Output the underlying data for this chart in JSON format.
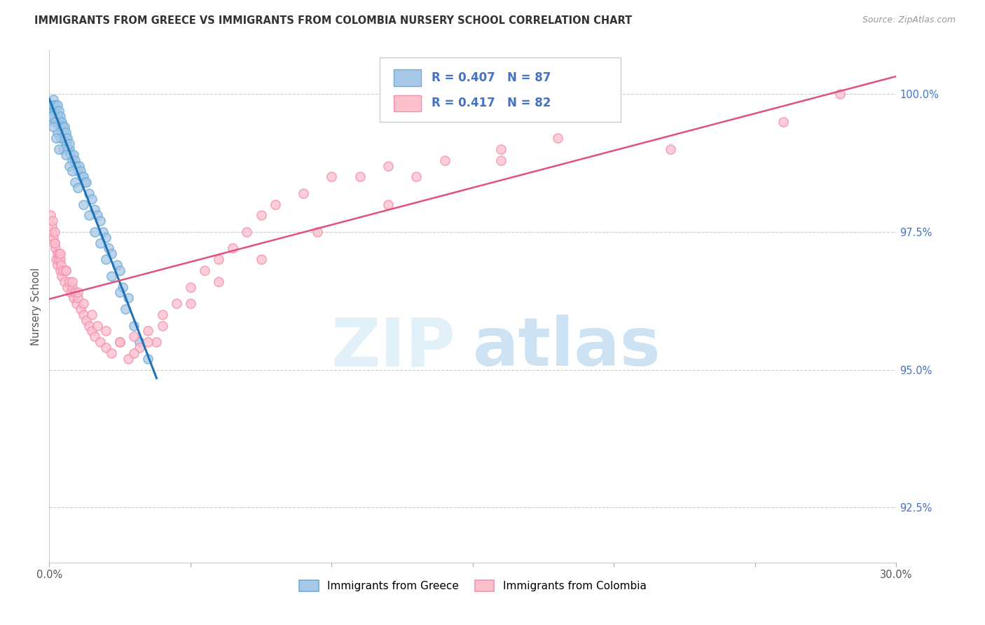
{
  "title": "IMMIGRANTS FROM GREECE VS IMMIGRANTS FROM COLOMBIA NURSERY SCHOOL CORRELATION CHART",
  "source": "Source: ZipAtlas.com",
  "ylabel": "Nursery School",
  "ytick_values": [
    92.5,
    95.0,
    97.5,
    100.0
  ],
  "xmin": 0.0,
  "xmax": 30.0,
  "ymin": 91.5,
  "ymax": 100.8,
  "greece_R": 0.407,
  "greece_N": 87,
  "colombia_R": 0.417,
  "colombia_N": 82,
  "greece_color": "#a8c8e8",
  "greece_edge_color": "#6baed6",
  "colombia_color": "#fcc0cb",
  "colombia_edge_color": "#f48fb1",
  "greece_line_color": "#2171b5",
  "colombia_line_color": "#e05080",
  "legend_text_color": "#4472c4",
  "watermark_zip_color": "#d0e4f5",
  "watermark_atlas_color": "#b8d0e8",
  "legend_label_greece": "Immigrants from Greece",
  "legend_label_colombia": "Immigrants from Colombia",
  "greece_x": [
    0.05,
    0.08,
    0.1,
    0.12,
    0.15,
    0.15,
    0.18,
    0.2,
    0.2,
    0.22,
    0.25,
    0.25,
    0.28,
    0.3,
    0.3,
    0.32,
    0.35,
    0.35,
    0.38,
    0.4,
    0.4,
    0.42,
    0.45,
    0.45,
    0.48,
    0.5,
    0.5,
    0.52,
    0.55,
    0.55,
    0.58,
    0.6,
    0.6,
    0.62,
    0.65,
    0.65,
    0.7,
    0.7,
    0.75,
    0.8,
    0.85,
    0.9,
    0.95,
    1.0,
    1.05,
    1.1,
    1.15,
    1.2,
    1.25,
    1.3,
    1.4,
    1.5,
    1.6,
    1.7,
    1.8,
    1.9,
    2.0,
    2.1,
    2.2,
    2.4,
    2.5,
    2.6,
    2.8,
    0.1,
    0.2,
    0.3,
    0.4,
    0.5,
    0.6,
    0.7,
    0.8,
    0.9,
    1.0,
    1.2,
    1.4,
    1.6,
    1.8,
    2.0,
    2.2,
    2.5,
    2.7,
    3.0,
    3.2,
    3.5,
    0.15,
    0.25,
    0.35
  ],
  "greece_y": [
    99.6,
    99.7,
    99.8,
    99.8,
    99.7,
    99.9,
    99.8,
    99.6,
    99.7,
    99.8,
    99.5,
    99.7,
    99.6,
    99.5,
    99.8,
    99.6,
    99.5,
    99.7,
    99.4,
    99.5,
    99.6,
    99.4,
    99.3,
    99.5,
    99.4,
    99.2,
    99.4,
    99.3,
    99.2,
    99.4,
    99.1,
    99.2,
    99.3,
    99.1,
    99.0,
    99.2,
    99.0,
    99.1,
    98.9,
    98.8,
    98.9,
    98.8,
    98.7,
    98.6,
    98.7,
    98.6,
    98.5,
    98.5,
    98.4,
    98.4,
    98.2,
    98.1,
    97.9,
    97.8,
    97.7,
    97.5,
    97.4,
    97.2,
    97.1,
    96.9,
    96.8,
    96.5,
    96.3,
    99.6,
    99.5,
    99.3,
    99.2,
    99.0,
    98.9,
    98.7,
    98.6,
    98.4,
    98.3,
    98.0,
    97.8,
    97.5,
    97.3,
    97.0,
    96.7,
    96.4,
    96.1,
    95.8,
    95.5,
    95.2,
    99.4,
    99.2,
    99.0
  ],
  "colombia_x": [
    0.05,
    0.08,
    0.1,
    0.12,
    0.15,
    0.18,
    0.2,
    0.22,
    0.25,
    0.28,
    0.3,
    0.32,
    0.35,
    0.38,
    0.4,
    0.42,
    0.45,
    0.5,
    0.55,
    0.6,
    0.65,
    0.7,
    0.75,
    0.8,
    0.85,
    0.9,
    0.95,
    1.0,
    1.1,
    1.2,
    1.3,
    1.4,
    1.5,
    1.6,
    1.7,
    1.8,
    2.0,
    2.2,
    2.5,
    2.8,
    3.0,
    3.2,
    3.5,
    3.8,
    4.0,
    4.5,
    5.0,
    5.5,
    6.0,
    6.5,
    7.0,
    7.5,
    8.0,
    9.0,
    10.0,
    11.0,
    12.0,
    13.0,
    14.0,
    16.0,
    18.0,
    22.0,
    26.0,
    0.2,
    0.4,
    0.6,
    0.8,
    1.0,
    1.2,
    1.5,
    2.0,
    2.5,
    3.0,
    3.5,
    4.0,
    5.0,
    6.0,
    7.5,
    9.5,
    12.0,
    16.0,
    28.0
  ],
  "colombia_y": [
    97.8,
    97.5,
    97.6,
    97.7,
    97.4,
    97.3,
    97.5,
    97.2,
    97.0,
    97.1,
    96.9,
    97.0,
    97.1,
    96.8,
    97.0,
    96.9,
    96.7,
    96.8,
    96.6,
    96.8,
    96.5,
    96.6,
    96.4,
    96.5,
    96.3,
    96.4,
    96.2,
    96.3,
    96.1,
    96.0,
    95.9,
    95.8,
    95.7,
    95.6,
    95.8,
    95.5,
    95.4,
    95.3,
    95.5,
    95.2,
    95.6,
    95.4,
    95.7,
    95.5,
    96.0,
    96.2,
    96.5,
    96.8,
    97.0,
    97.2,
    97.5,
    97.8,
    98.0,
    98.2,
    98.5,
    98.5,
    98.7,
    98.5,
    98.8,
    99.0,
    99.2,
    99.0,
    99.5,
    97.3,
    97.1,
    96.8,
    96.6,
    96.4,
    96.2,
    96.0,
    95.7,
    95.5,
    95.3,
    95.5,
    95.8,
    96.2,
    96.6,
    97.0,
    97.5,
    98.0,
    98.8,
    100.0
  ]
}
